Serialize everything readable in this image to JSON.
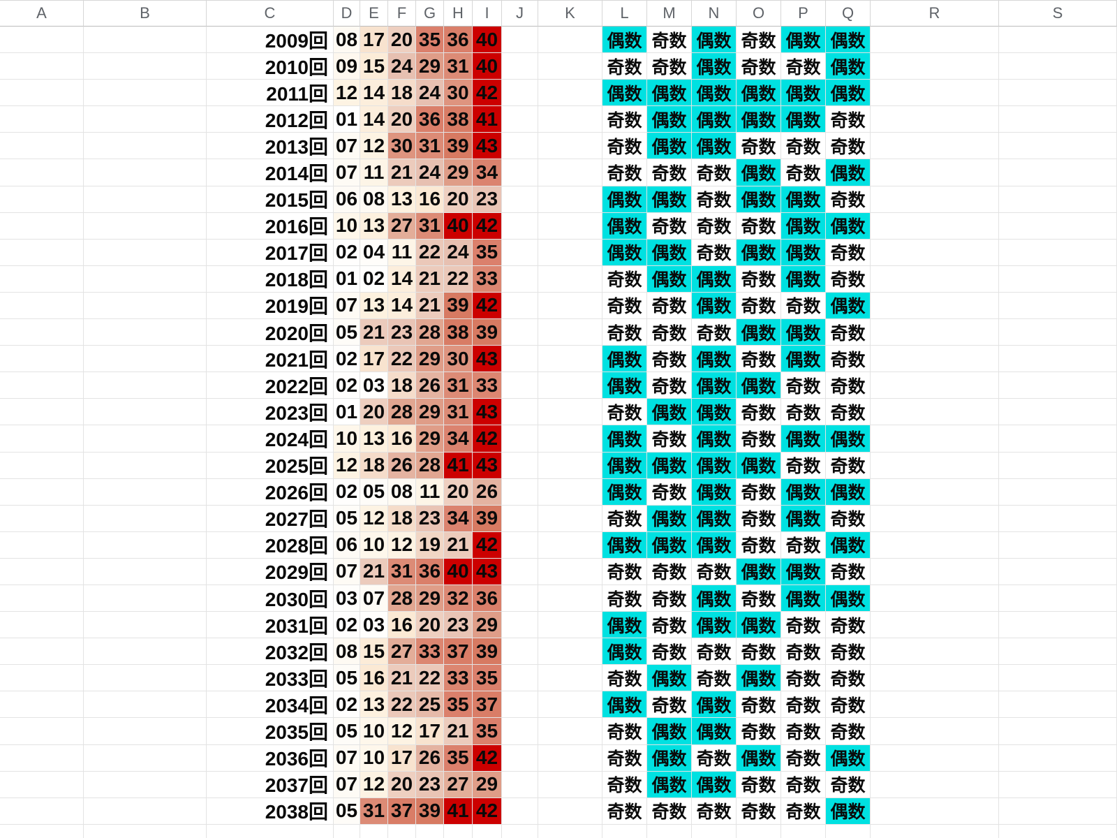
{
  "sheet": {
    "column_headers": [
      "A",
      "B",
      "C",
      "D",
      "E",
      "F",
      "G",
      "H",
      "I",
      "J",
      "K",
      "L",
      "M",
      "N",
      "O",
      "P",
      "Q",
      "R",
      "S"
    ],
    "parity_legend": {
      "even_label": "偶数",
      "odd_label": "奇数"
    },
    "colors": {
      "even_cell_bg": "#00e1e1",
      "odd_cell_bg": "#ffffff",
      "high_value_red": "#cc0000",
      "red_threshold": 40,
      "heat_stops": [
        [
          1,
          "#ffffff"
        ],
        [
          8,
          "#fefaf3"
        ],
        [
          12,
          "#fdf3e3"
        ],
        [
          16,
          "#fbe9d4"
        ],
        [
          20,
          "#eecfc0"
        ],
        [
          24,
          "#e7c0b1"
        ],
        [
          28,
          "#e1a691"
        ],
        [
          31,
          "#dc8b76"
        ],
        [
          35,
          "#db806c"
        ],
        [
          39,
          "#d77a62"
        ]
      ],
      "grid_line": "#e3e3e3",
      "header_text": "#5f6368",
      "cell_text": "#0a0a0a"
    },
    "rows": [
      {
        "label": "2009回",
        "numbers": [
          "08",
          "17",
          "20",
          "35",
          "36",
          "40"
        ],
        "parity": [
          "偶数",
          "奇数",
          "偶数",
          "奇数",
          "偶数",
          "偶数"
        ]
      },
      {
        "label": "2010回",
        "numbers": [
          "09",
          "15",
          "24",
          "29",
          "31",
          "40"
        ],
        "parity": [
          "奇数",
          "奇数",
          "偶数",
          "奇数",
          "奇数",
          "偶数"
        ]
      },
      {
        "label": "2011回",
        "numbers": [
          "12",
          "14",
          "18",
          "24",
          "30",
          "42"
        ],
        "parity": [
          "偶数",
          "偶数",
          "偶数",
          "偶数",
          "偶数",
          "偶数"
        ]
      },
      {
        "label": "2012回",
        "numbers": [
          "01",
          "14",
          "20",
          "36",
          "38",
          "41"
        ],
        "parity": [
          "奇数",
          "偶数",
          "偶数",
          "偶数",
          "偶数",
          "奇数"
        ]
      },
      {
        "label": "2013回",
        "numbers": [
          "07",
          "12",
          "30",
          "31",
          "39",
          "43"
        ],
        "parity": [
          "奇数",
          "偶数",
          "偶数",
          "奇数",
          "奇数",
          "奇数"
        ]
      },
      {
        "label": "2014回",
        "numbers": [
          "07",
          "11",
          "21",
          "24",
          "29",
          "34"
        ],
        "parity": [
          "奇数",
          "奇数",
          "奇数",
          "偶数",
          "奇数",
          "偶数"
        ]
      },
      {
        "label": "2015回",
        "numbers": [
          "06",
          "08",
          "13",
          "16",
          "20",
          "23"
        ],
        "parity": [
          "偶数",
          "偶数",
          "奇数",
          "偶数",
          "偶数",
          "奇数"
        ]
      },
      {
        "label": "2016回",
        "numbers": [
          "10",
          "13",
          "27",
          "31",
          "40",
          "42"
        ],
        "parity": [
          "偶数",
          "奇数",
          "奇数",
          "奇数",
          "偶数",
          "偶数"
        ]
      },
      {
        "label": "2017回",
        "numbers": [
          "02",
          "04",
          "11",
          "22",
          "24",
          "35"
        ],
        "parity": [
          "偶数",
          "偶数",
          "奇数",
          "偶数",
          "偶数",
          "奇数"
        ]
      },
      {
        "label": "2018回",
        "numbers": [
          "01",
          "02",
          "14",
          "21",
          "22",
          "33"
        ],
        "parity": [
          "奇数",
          "偶数",
          "偶数",
          "奇数",
          "偶数",
          "奇数"
        ]
      },
      {
        "label": "2019回",
        "numbers": [
          "07",
          "13",
          "14",
          "21",
          "39",
          "42"
        ],
        "parity": [
          "奇数",
          "奇数",
          "偶数",
          "奇数",
          "奇数",
          "偶数"
        ]
      },
      {
        "label": "2020回",
        "numbers": [
          "05",
          "21",
          "23",
          "28",
          "38",
          "39"
        ],
        "parity": [
          "奇数",
          "奇数",
          "奇数",
          "偶数",
          "偶数",
          "奇数"
        ]
      },
      {
        "label": "2021回",
        "numbers": [
          "02",
          "17",
          "22",
          "29",
          "30",
          "43"
        ],
        "parity": [
          "偶数",
          "奇数",
          "偶数",
          "奇数",
          "偶数",
          "奇数"
        ]
      },
      {
        "label": "2022回",
        "numbers": [
          "02",
          "03",
          "18",
          "26",
          "31",
          "33"
        ],
        "parity": [
          "偶数",
          "奇数",
          "偶数",
          "偶数",
          "奇数",
          "奇数"
        ]
      },
      {
        "label": "2023回",
        "numbers": [
          "01",
          "20",
          "28",
          "29",
          "31",
          "43"
        ],
        "parity": [
          "奇数",
          "偶数",
          "偶数",
          "奇数",
          "奇数",
          "奇数"
        ]
      },
      {
        "label": "2024回",
        "numbers": [
          "10",
          "13",
          "16",
          "29",
          "34",
          "42"
        ],
        "parity": [
          "偶数",
          "奇数",
          "偶数",
          "奇数",
          "偶数",
          "偶数"
        ]
      },
      {
        "label": "2025回",
        "numbers": [
          "12",
          "18",
          "26",
          "28",
          "41",
          "43"
        ],
        "parity": [
          "偶数",
          "偶数",
          "偶数",
          "偶数",
          "奇数",
          "奇数"
        ]
      },
      {
        "label": "2026回",
        "numbers": [
          "02",
          "05",
          "08",
          "11",
          "20",
          "26"
        ],
        "parity": [
          "偶数",
          "奇数",
          "偶数",
          "奇数",
          "偶数",
          "偶数"
        ]
      },
      {
        "label": "2027回",
        "numbers": [
          "05",
          "12",
          "18",
          "23",
          "34",
          "39"
        ],
        "parity": [
          "奇数",
          "偶数",
          "偶数",
          "奇数",
          "偶数",
          "奇数"
        ]
      },
      {
        "label": "2028回",
        "numbers": [
          "06",
          "10",
          "12",
          "19",
          "21",
          "42"
        ],
        "parity": [
          "偶数",
          "偶数",
          "偶数",
          "奇数",
          "奇数",
          "偶数"
        ]
      },
      {
        "label": "2029回",
        "numbers": [
          "07",
          "21",
          "31",
          "36",
          "40",
          "43"
        ],
        "parity": [
          "奇数",
          "奇数",
          "奇数",
          "偶数",
          "偶数",
          "奇数"
        ]
      },
      {
        "label": "2030回",
        "numbers": [
          "03",
          "07",
          "28",
          "29",
          "32",
          "36"
        ],
        "parity": [
          "奇数",
          "奇数",
          "偶数",
          "奇数",
          "偶数",
          "偶数"
        ]
      },
      {
        "label": "2031回",
        "numbers": [
          "02",
          "03",
          "16",
          "20",
          "23",
          "29"
        ],
        "parity": [
          "偶数",
          "奇数",
          "偶数",
          "偶数",
          "奇数",
          "奇数"
        ]
      },
      {
        "label": "2032回",
        "numbers": [
          "08",
          "15",
          "27",
          "33",
          "37",
          "39"
        ],
        "parity": [
          "偶数",
          "奇数",
          "奇数",
          "奇数",
          "奇数",
          "奇数"
        ]
      },
      {
        "label": "2033回",
        "numbers": [
          "05",
          "16",
          "21",
          "22",
          "33",
          "35"
        ],
        "parity": [
          "奇数",
          "偶数",
          "奇数",
          "偶数",
          "奇数",
          "奇数"
        ]
      },
      {
        "label": "2034回",
        "numbers": [
          "02",
          "13",
          "22",
          "25",
          "35",
          "37"
        ],
        "parity": [
          "偶数",
          "奇数",
          "偶数",
          "奇数",
          "奇数",
          "奇数"
        ]
      },
      {
        "label": "2035回",
        "numbers": [
          "05",
          "10",
          "12",
          "17",
          "21",
          "35"
        ],
        "parity": [
          "奇数",
          "偶数",
          "偶数",
          "奇数",
          "奇数",
          "奇数"
        ]
      },
      {
        "label": "2036回",
        "numbers": [
          "07",
          "10",
          "17",
          "26",
          "35",
          "42"
        ],
        "parity": [
          "奇数",
          "偶数",
          "奇数",
          "偶数",
          "奇数",
          "偶数"
        ]
      },
      {
        "label": "2037回",
        "numbers": [
          "07",
          "12",
          "20",
          "23",
          "27",
          "29"
        ],
        "parity": [
          "奇数",
          "偶数",
          "偶数",
          "奇数",
          "奇数",
          "奇数"
        ]
      },
      {
        "label": "2038回",
        "numbers": [
          "05",
          "31",
          "37",
          "39",
          "41",
          "42"
        ],
        "parity": [
          "奇数",
          "奇数",
          "奇数",
          "奇数",
          "奇数",
          "偶数"
        ]
      }
    ]
  }
}
